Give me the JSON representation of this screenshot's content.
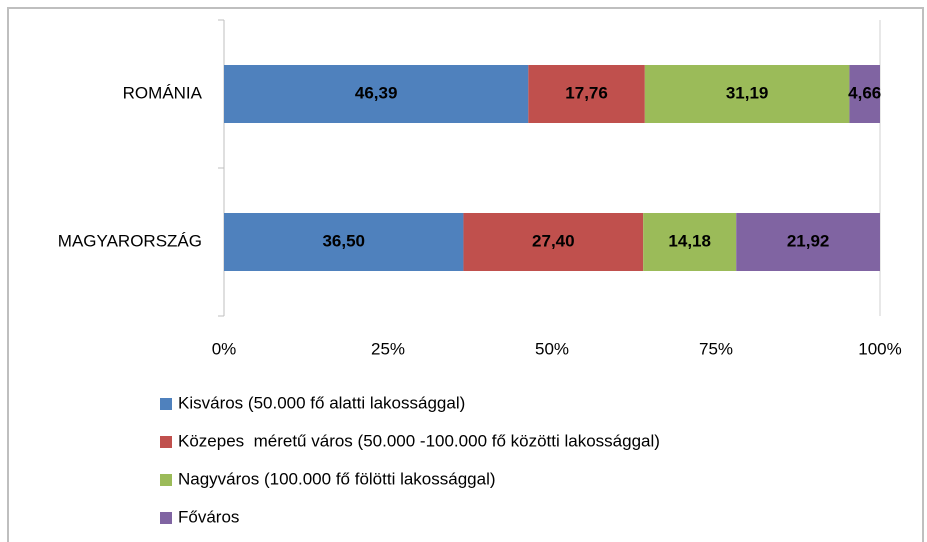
{
  "chart_data": {
    "type": "bar",
    "orientation": "horizontal",
    "stacked": true,
    "categories": [
      "ROMÁNIA",
      "MAGYARORSZÁG"
    ],
    "series": [
      {
        "name": "Kisváros (50.000 fő alatti lakossággal)",
        "color": "#4f81bd",
        "values": [
          46.39,
          36.5
        ],
        "value_labels": [
          "46,39",
          "36,50"
        ]
      },
      {
        "name": "Közepes  méretű város (50.000 -100.000 fő közötti lakossággal)",
        "color": "#c0504d",
        "values": [
          17.76,
          27.4
        ],
        "value_labels": [
          "17,76",
          "27,40"
        ]
      },
      {
        "name": "Nagyváros (100.000 fő fölötti lakossággal)",
        "color": "#9bbb59",
        "values": [
          31.19,
          14.18
        ],
        "value_labels": [
          "31,19",
          "14,18"
        ]
      },
      {
        "name": "Főváros",
        "color": "#8064a2",
        "values": [
          4.66,
          21.92
        ],
        "value_labels": [
          "4,66",
          "21,92"
        ]
      }
    ],
    "xlim": [
      0,
      100
    ],
    "xticks": [
      {
        "value": 0,
        "label": "0%"
      },
      {
        "value": 25,
        "label": "25%"
      },
      {
        "value": 50,
        "label": "50%"
      },
      {
        "value": 75,
        "label": "75%"
      },
      {
        "value": 100,
        "label": "100%"
      }
    ],
    "grid": false,
    "legend": "bottom"
  }
}
